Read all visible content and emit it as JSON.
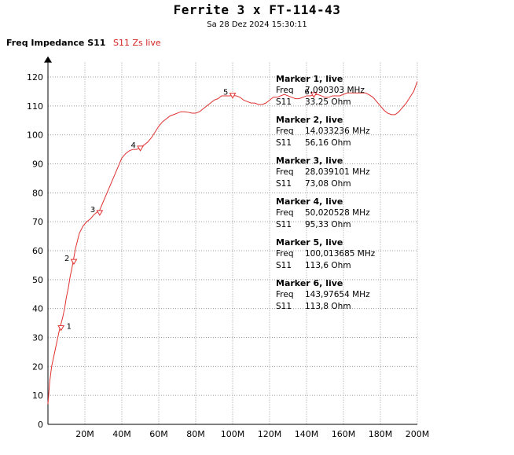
{
  "chart_title": "Ferrite 3 x FT-114-43",
  "timestamp": "Sa 28 Dez 2024 15:30:11",
  "y_axis_label": "Freq Impedance S11",
  "series_label": "S11 Zs live",
  "colors": {
    "trace": "#e03030",
    "grid": "#9a9a9a"
  },
  "chart_data": {
    "type": "line",
    "title": "Ferrite 3 x FT-114-43",
    "xlim": [
      0,
      200
    ],
    "ylim": [
      0,
      125
    ],
    "x_ticks": [
      20,
      40,
      60,
      80,
      100,
      120,
      140,
      160,
      180,
      200
    ],
    "x_tick_labels": [
      "20M",
      "40M",
      "60M",
      "80M",
      "100M",
      "120M",
      "140M",
      "160M",
      "180M",
      "200M"
    ],
    "y_ticks": [
      0,
      10,
      20,
      30,
      40,
      50,
      60,
      70,
      80,
      90,
      100,
      110,
      120
    ],
    "grid": true,
    "series": [
      {
        "x": [
          0,
          1,
          2,
          3,
          4,
          5,
          6,
          7,
          8,
          9,
          10,
          11,
          12,
          13,
          14,
          15,
          17,
          19,
          21,
          23,
          25,
          27,
          28,
          30,
          32,
          34,
          36,
          38,
          40,
          42,
          44,
          46,
          48,
          50,
          52,
          54,
          56,
          58,
          60,
          62,
          64,
          66,
          68,
          70,
          72,
          74,
          76,
          78,
          80,
          82,
          84,
          86,
          88,
          90,
          92,
          94,
          96,
          98,
          100,
          102,
          104,
          106,
          108,
          110,
          112,
          114,
          116,
          118,
          120,
          122,
          124,
          126,
          128,
          130,
          132,
          134,
          136,
          138,
          140,
          142,
          144,
          146,
          148,
          150,
          152,
          154,
          156,
          158,
          160,
          162,
          164,
          166,
          168,
          170,
          172,
          174,
          176,
          178,
          180,
          182,
          184,
          186,
          188,
          190,
          192,
          194,
          196,
          198,
          200
        ],
        "y": [
          7,
          15,
          20,
          23,
          26,
          29,
          32,
          34.5,
          37,
          40,
          44,
          47,
          51,
          54,
          57.5,
          61,
          66,
          68.5,
          70,
          71,
          72.5,
          73.5,
          74,
          77,
          80,
          83,
          86,
          89,
          92,
          93.5,
          94.5,
          95,
          95,
          95.5,
          96.5,
          97.5,
          99,
          101,
          103,
          104.5,
          105.5,
          106.5,
          107,
          107.5,
          108,
          108,
          107.8,
          107.5,
          107.5,
          108,
          109,
          110,
          111,
          112,
          112.5,
          113.5,
          113.5,
          113.5,
          113.6,
          113.5,
          113,
          112,
          111.5,
          111,
          111,
          110.5,
          110.5,
          111,
          112,
          113,
          113,
          113.5,
          114,
          113.5,
          113,
          112.5,
          112.5,
          113,
          113.5,
          113.5,
          113.8,
          114,
          113.5,
          113,
          113,
          113.5,
          113.5,
          113.5,
          114,
          114.5,
          114.5,
          114.5,
          114.5,
          114.5,
          114.5,
          113.8,
          113,
          111.5,
          110,
          108.5,
          107.5,
          107,
          107,
          108,
          109.5,
          111,
          113,
          115,
          118.5
        ]
      }
    ],
    "markers": [
      {
        "id": "1",
        "title": "Marker 1, live",
        "freq": "7,090303 MHz",
        "s11": "33,25 Ohm",
        "x": 7.09,
        "y": 33.25
      },
      {
        "id": "2",
        "title": "Marker 2, live",
        "freq": "14,033236 MHz",
        "s11": "56,16 Ohm",
        "x": 14.03,
        "y": 56.16
      },
      {
        "id": "3",
        "title": "Marker 3, live",
        "freq": "28,039101 MHz",
        "s11": "73,08 Ohm",
        "x": 28.04,
        "y": 73.08
      },
      {
        "id": "4",
        "title": "Marker 4, live",
        "freq": "50,020528 MHz",
        "s11": "95,33 Ohm",
        "x": 50.02,
        "y": 95.33
      },
      {
        "id": "5",
        "title": "Marker 5, live",
        "freq": "100,013685 MHz",
        "s11": "113,6 Ohm",
        "x": 100.01,
        "y": 113.6
      },
      {
        "id": "6",
        "title": "Marker 6, live",
        "freq": "143,97654 MHz",
        "s11": "113,8 Ohm",
        "x": 143.98,
        "y": 113.8
      }
    ],
    "marker_field_labels": {
      "freq": "Freq",
      "s11": "S11"
    }
  }
}
